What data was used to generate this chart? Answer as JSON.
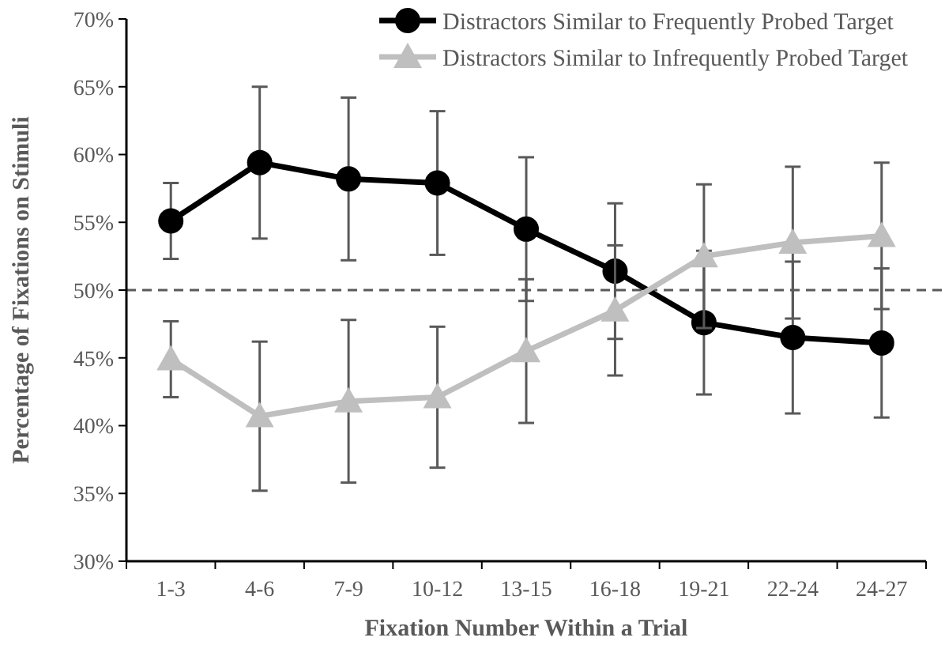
{
  "chart_data": {
    "type": "line",
    "xlabel": "Fixation Number Within a Trial",
    "ylabel": "Percentage of Fixations on Stimuli",
    "categories": [
      "1-3",
      "4-6",
      "7-9",
      "10-12",
      "13-15",
      "16-18",
      "19-21",
      "22-24",
      "24-27"
    ],
    "series": [
      {
        "name": "Distractors Similar to Frequently Probed Target",
        "color": "#000000",
        "marker": "circle",
        "values": [
          55.1,
          59.4,
          58.2,
          57.9,
          54.5,
          51.4,
          47.6,
          46.5,
          46.1
        ],
        "errors": [
          2.8,
          5.6,
          6,
          5.3,
          5.3,
          5,
          5.3,
          5.6,
          5.5
        ]
      },
      {
        "name": "Distractors Similar to Infrequently Probed Target",
        "color": "#bfbfbf",
        "marker": "triangle",
        "values": [
          44.9,
          40.7,
          41.8,
          42.1,
          45.5,
          48.5,
          52.5,
          53.5,
          54.0
        ],
        "errors": [
          2.8,
          5.5,
          6,
          5.2,
          5.3,
          4.8,
          5.3,
          5.6,
          5.4
        ]
      }
    ],
    "ylim": [
      30,
      70
    ],
    "yticks": [
      {
        "value": 30,
        "label": "30%"
      },
      {
        "value": 35,
        "label": "35%"
      },
      {
        "value": 40,
        "label": "40%"
      },
      {
        "value": 45,
        "label": "45%"
      },
      {
        "value": 50,
        "label": "50%"
      },
      {
        "value": 55,
        "label": "55%"
      },
      {
        "value": 60,
        "label": "60%"
      },
      {
        "value": 65,
        "label": "65%"
      },
      {
        "value": 70,
        "label": "70%"
      }
    ],
    "ref_lines": [
      {
        "axis": "y",
        "value": 50,
        "color": "#595959",
        "line_style": "dashed"
      }
    ],
    "grid": false,
    "legend": "top"
  }
}
